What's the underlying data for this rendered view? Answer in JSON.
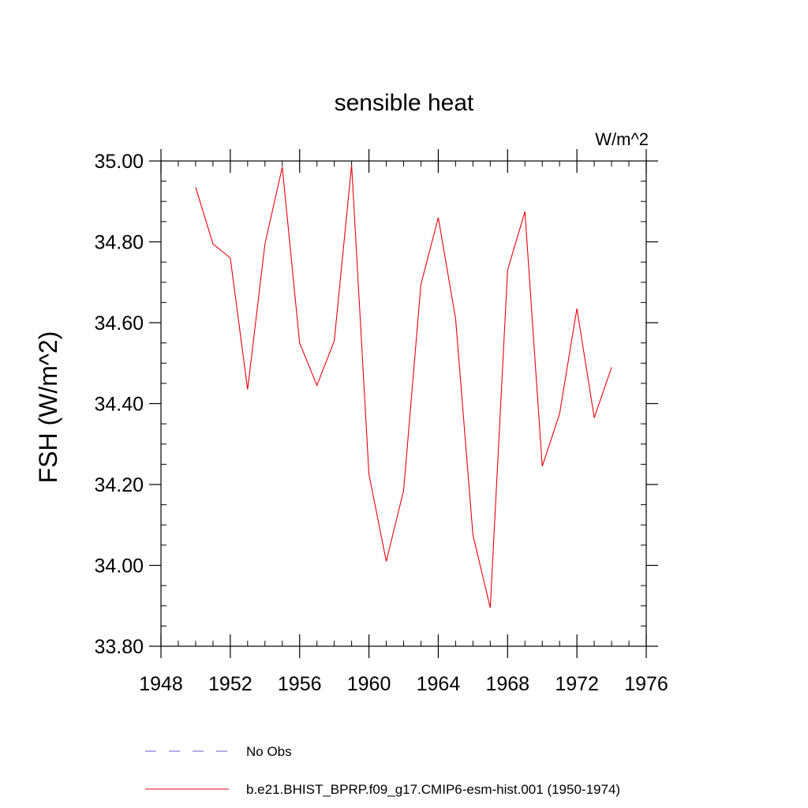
{
  "chart_data": {
    "type": "line",
    "title": "sensible heat",
    "units_label": "W/m^2",
    "ylabel": "FSH  (W/m^2)",
    "xlabel": "",
    "xlim": [
      1948,
      1976
    ],
    "ylim": [
      33.8,
      35.0
    ],
    "x_major_ticks": [
      1948,
      1952,
      1956,
      1960,
      1964,
      1968,
      1972,
      1976
    ],
    "x_tick_labels": [
      "1948",
      "1952",
      "1956",
      "1960",
      "1964",
      "1968",
      "1972",
      "1976"
    ],
    "y_major_ticks": [
      33.8,
      34.0,
      34.2,
      34.4,
      34.6,
      34.8,
      35.0
    ],
    "y_tick_labels": [
      "33.80",
      "34.00",
      "34.20",
      "34.40",
      "34.60",
      "34.80",
      "35.00"
    ],
    "x_minor_step": 1,
    "y_minor_step": 0.05,
    "grid": false,
    "legend_position": "bottom",
    "series": [
      {
        "name": "b.e21.BHIST_BPRP.f09_g17.CMIP6-esm-hist.001 (1950-1974)",
        "color": "#e8000b",
        "style": "solid",
        "x": [
          1950,
          1951,
          1952,
          1953,
          1954,
          1955,
          1956,
          1957,
          1958,
          1959,
          1960,
          1961,
          1962,
          1963,
          1964,
          1965,
          1966,
          1967,
          1968,
          1969,
          1970,
          1971,
          1972,
          1973,
          1974
        ],
        "values": [
          34.935,
          34.795,
          34.76,
          34.435,
          34.795,
          34.985,
          34.55,
          34.445,
          34.555,
          34.99,
          34.225,
          34.01,
          34.185,
          34.695,
          34.86,
          34.61,
          34.075,
          33.895,
          34.73,
          34.875,
          34.245,
          34.375,
          34.635,
          34.365,
          34.49
        ]
      }
    ],
    "legend": [
      {
        "label": "No Obs",
        "color": "#6a5acd",
        "style": "dashed"
      },
      {
        "label": "b.e21.BHIST_BPRP.f09_g17.CMIP6-esm-hist.001 (1950-1974)",
        "color": "#e8000b",
        "style": "solid"
      }
    ]
  }
}
